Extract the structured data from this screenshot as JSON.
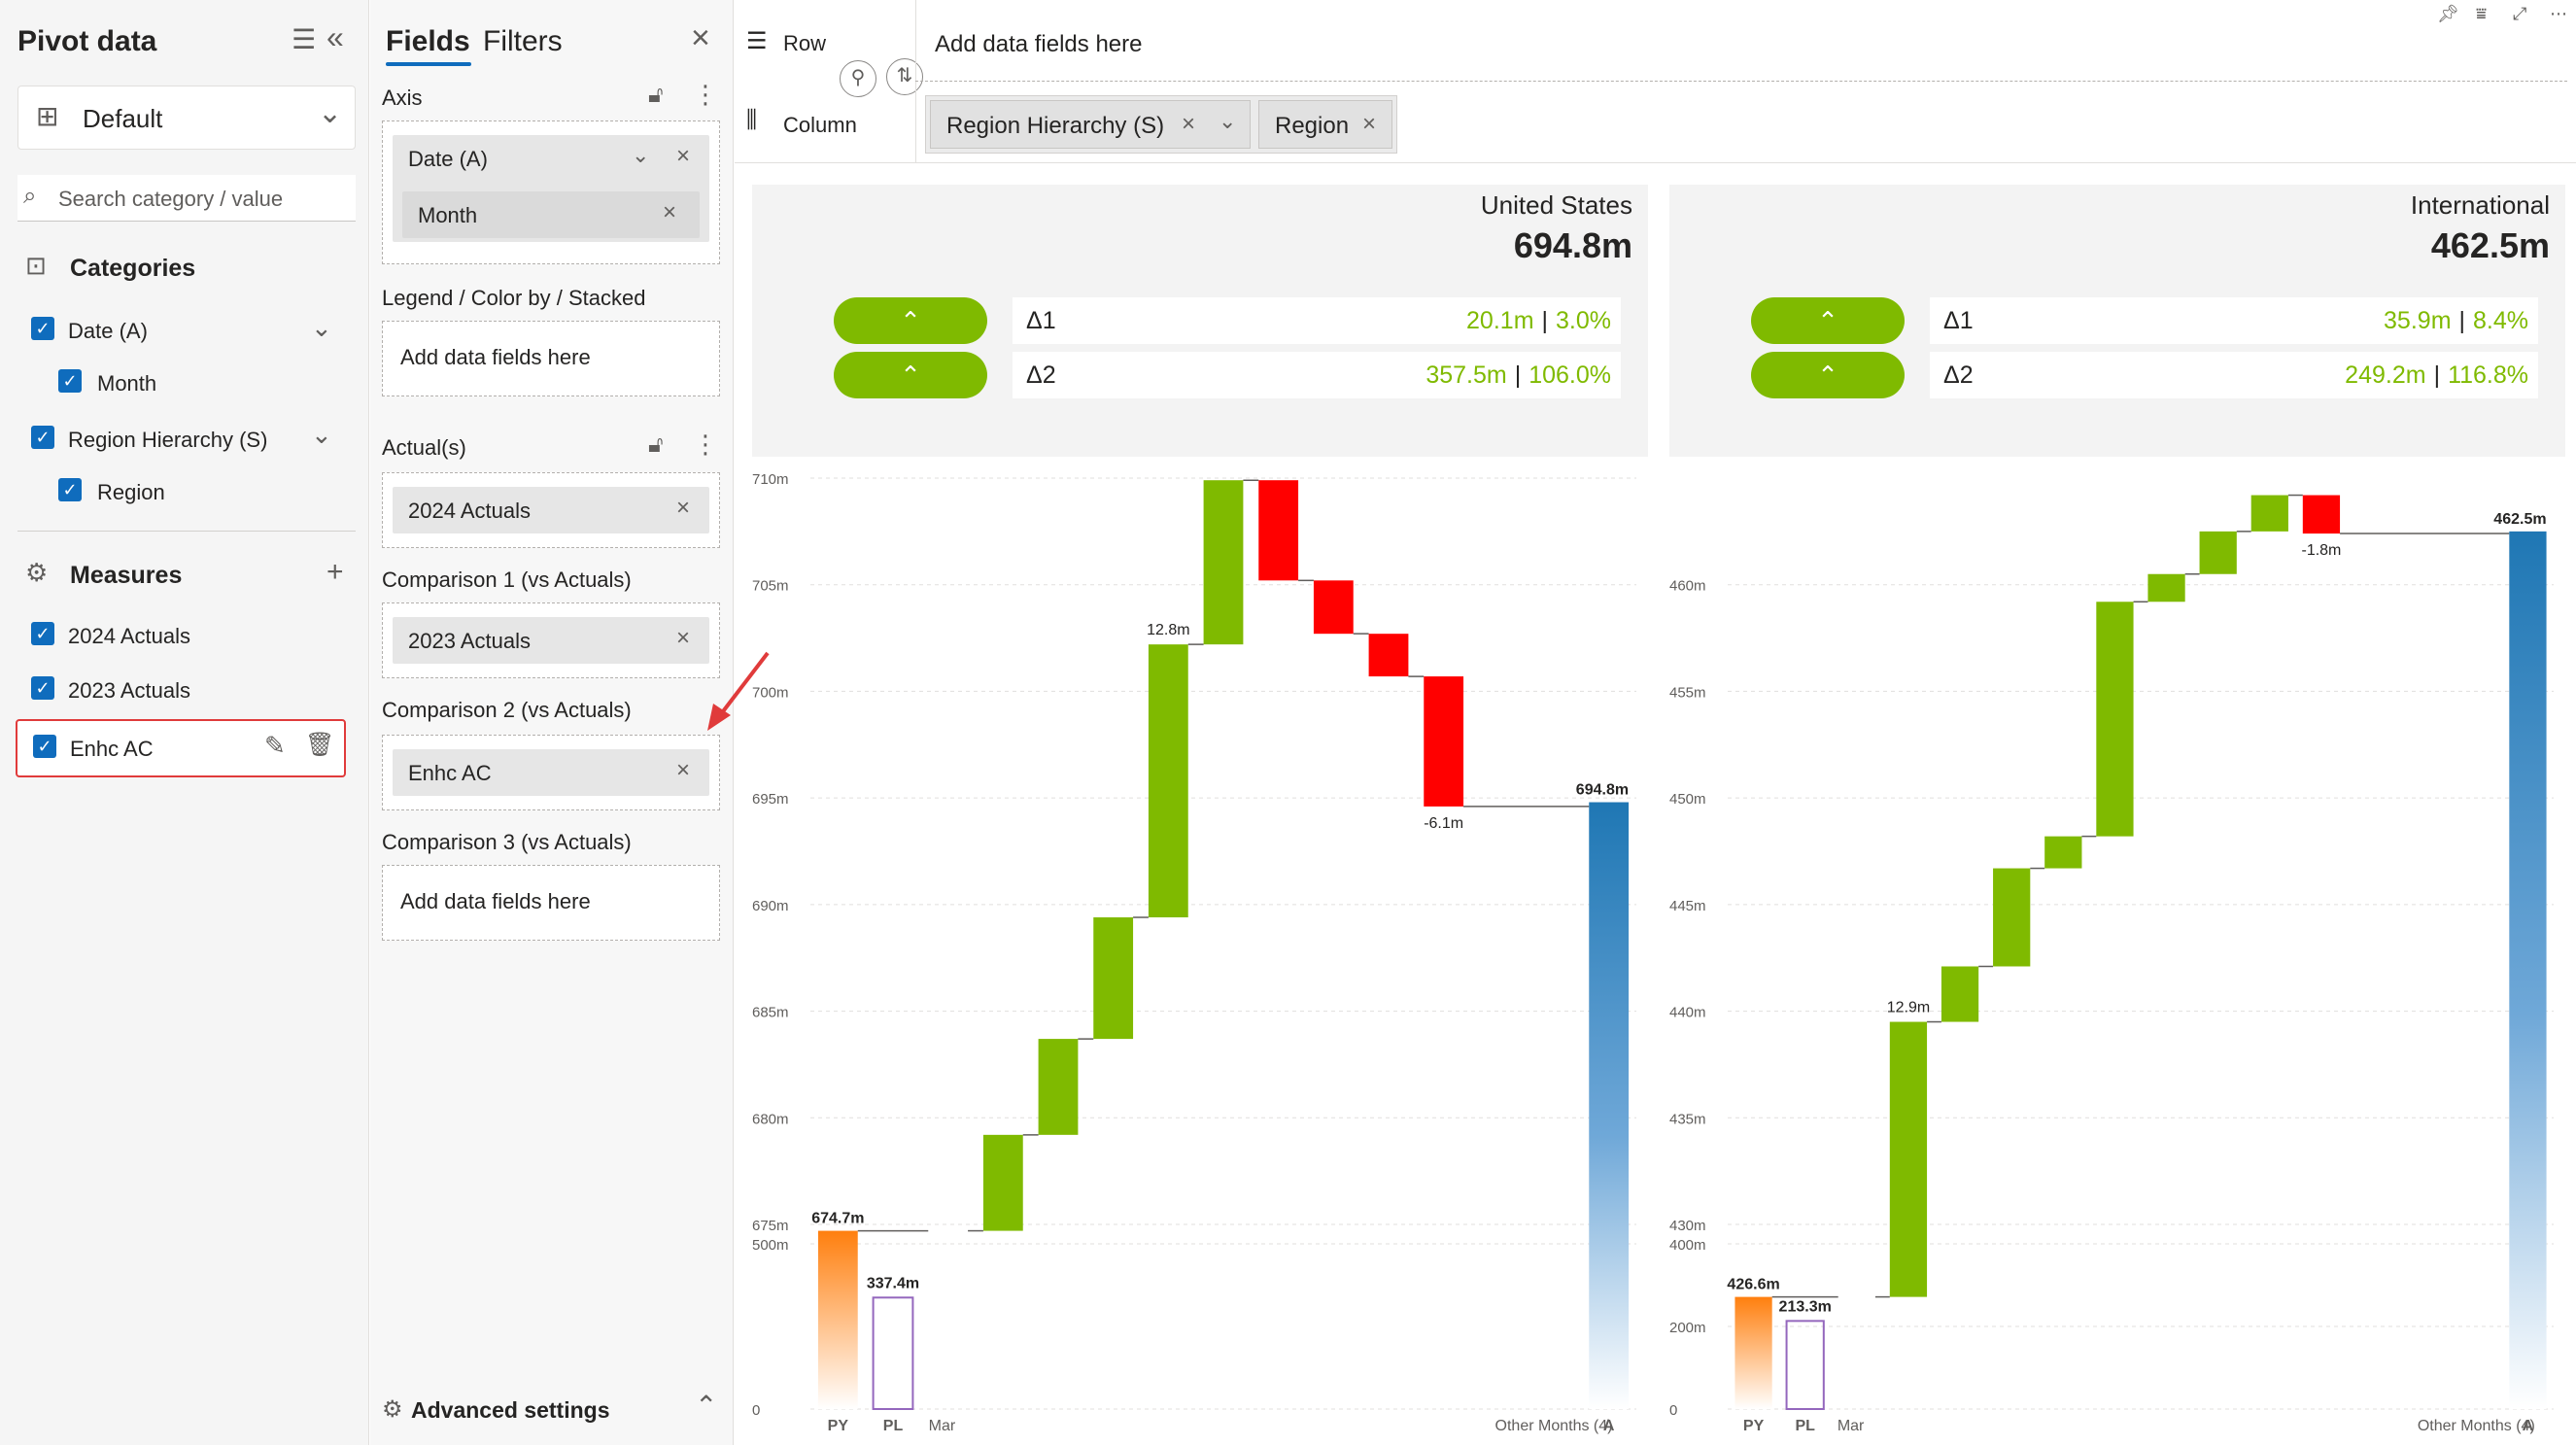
{
  "pivot_panel": {
    "title": "Pivot data",
    "layout_dropdown": "Default",
    "search_placeholder": "Search category / value",
    "categories_header": "Categories",
    "categories": [
      {
        "label": "Date (A)",
        "checked": true,
        "level": 0,
        "expandable": true
      },
      {
        "label": "Month",
        "checked": true,
        "level": 1,
        "expandable": false
      },
      {
        "label": "Region Hierarchy (S)",
        "checked": true,
        "level": 0,
        "expandable": true
      },
      {
        "label": "Region",
        "checked": true,
        "level": 1,
        "expandable": false
      }
    ],
    "measures_header": "Measures",
    "measures": [
      {
        "label": "2024 Actuals",
        "checked": true
      },
      {
        "label": "2023 Actuals",
        "checked": true
      },
      {
        "label": "Enhc AC",
        "checked": true,
        "highlighted": true
      }
    ]
  },
  "fields_panel": {
    "tabs": [
      "Fields",
      "Filters"
    ],
    "active_tab": "Fields",
    "axis_label": "Axis",
    "axis_fields": [
      "Date (A)",
      "Month"
    ],
    "legend_label": "Legend / Color by / Stacked",
    "legend_placeholder": "Add data fields here",
    "actuals_label": "Actual(s)",
    "actuals_field": "2024 Actuals",
    "comparison1_label": "Comparison 1 (vs Actuals)",
    "comparison1_field": "2023 Actuals",
    "comparison2_label": "Comparison 2 (vs Actuals)",
    "comparison2_field": "Enhc AC",
    "comparison3_label": "Comparison 3 (vs Actuals)",
    "comparison3_placeholder": "Add data fields here",
    "advanced_settings": "Advanced settings"
  },
  "layout_bar": {
    "row_label": "Row",
    "column_label": "Column",
    "row_placeholder": "Add data fields here",
    "column_fields": [
      "Region Hierarchy (S)",
      "Region"
    ]
  },
  "colors": {
    "increase": "#7fba00",
    "decrease": "#ff0000",
    "py_bar": "#ff7f0e",
    "actual_bar": "#1f77b4",
    "plan_outline": "#9467bd",
    "accent": "#0f6cbd",
    "highlight_border": "#e03b3b"
  },
  "panels": [
    {
      "region": "United States",
      "total": "694.8m",
      "delta1_label": "Δ1",
      "delta1_abs": "20.1m",
      "delta1_pct": "3.0%",
      "delta2_label": "Δ2",
      "delta2_abs": "357.5m",
      "delta2_pct": "106.0%",
      "pill_glyph": "⌃"
    },
    {
      "region": "International",
      "total": "462.5m",
      "delta1_label": "Δ1",
      "delta1_abs": "35.9m",
      "delta1_pct": "8.4%",
      "delta2_label": "Δ2",
      "delta2_abs": "249.2m",
      "delta2_pct": "116.8%",
      "pill_glyph": "⌃"
    }
  ],
  "chart_data": [
    {
      "type": "waterfall",
      "panel": "United States",
      "y_ticks": [
        "0",
        "500m",
        "675m",
        "680m",
        "685m",
        "690m",
        "695m",
        "700m",
        "705m",
        "710m"
      ],
      "axis_break": true,
      "categories": [
        "PY",
        "PL",
        "Mar",
        "",
        "",
        "",
        "",
        "",
        "",
        "",
        "",
        "",
        "",
        "Other Months (4)",
        "A"
      ],
      "py": {
        "label": "PY",
        "value": 674.7,
        "data_label": "674.7m"
      },
      "pl": {
        "label": "PL",
        "value": 337.4,
        "data_label": "337.4m"
      },
      "steps": [
        {
          "delta": 0.0
        },
        {
          "delta": 4.5
        },
        {
          "delta": 4.5
        },
        {
          "delta": 5.7
        },
        {
          "delta": 12.8,
          "data_label": "12.8m"
        },
        {
          "delta": 7.7
        },
        {
          "delta": -4.7
        },
        {
          "delta": -2.5
        },
        {
          "delta": -2.0
        },
        {
          "delta": -6.1,
          "data_label": "-6.1m"
        }
      ],
      "actual": {
        "label": "A",
        "value": 694.8,
        "data_label": "694.8m"
      },
      "x_labels_shown": {
        "PY": "PY",
        "PL": "PL",
        "first": "Mar",
        "other": "Other Months (4)",
        "A": "A"
      }
    },
    {
      "type": "waterfall",
      "panel": "International",
      "y_ticks": [
        "0",
        "200m",
        "400m",
        "430m",
        "435m",
        "440m",
        "445m",
        "450m",
        "455m",
        "460m"
      ],
      "axis_break": true,
      "categories": [
        "PY",
        "PL",
        "Mar",
        "",
        "",
        "",
        "",
        "",
        "",
        "",
        "",
        "",
        "",
        "",
        "Other Months (4)",
        "A"
      ],
      "py": {
        "label": "PY",
        "value": 426.6,
        "data_label": "426.6m"
      },
      "pl": {
        "label": "PL",
        "value": 213.3,
        "data_label": "213.3m"
      },
      "steps": [
        {
          "delta": 0.0
        },
        {
          "delta": 12.9,
          "data_label": "12.9m"
        },
        {
          "delta": 2.6
        },
        {
          "delta": 4.6
        },
        {
          "delta": 1.5
        },
        {
          "delta": 11.0
        },
        {
          "delta": 1.3
        },
        {
          "delta": 2.0
        },
        {
          "delta": 1.7
        },
        {
          "delta": -1.8,
          "data_label": "-1.8m"
        }
      ],
      "actual": {
        "label": "A",
        "value": 462.5,
        "data_label": "462.5m"
      },
      "x_labels_shown": {
        "PY": "PY",
        "PL": "PL",
        "first": "Mar",
        "other": "Other Months (4)",
        "A": "A"
      }
    }
  ]
}
